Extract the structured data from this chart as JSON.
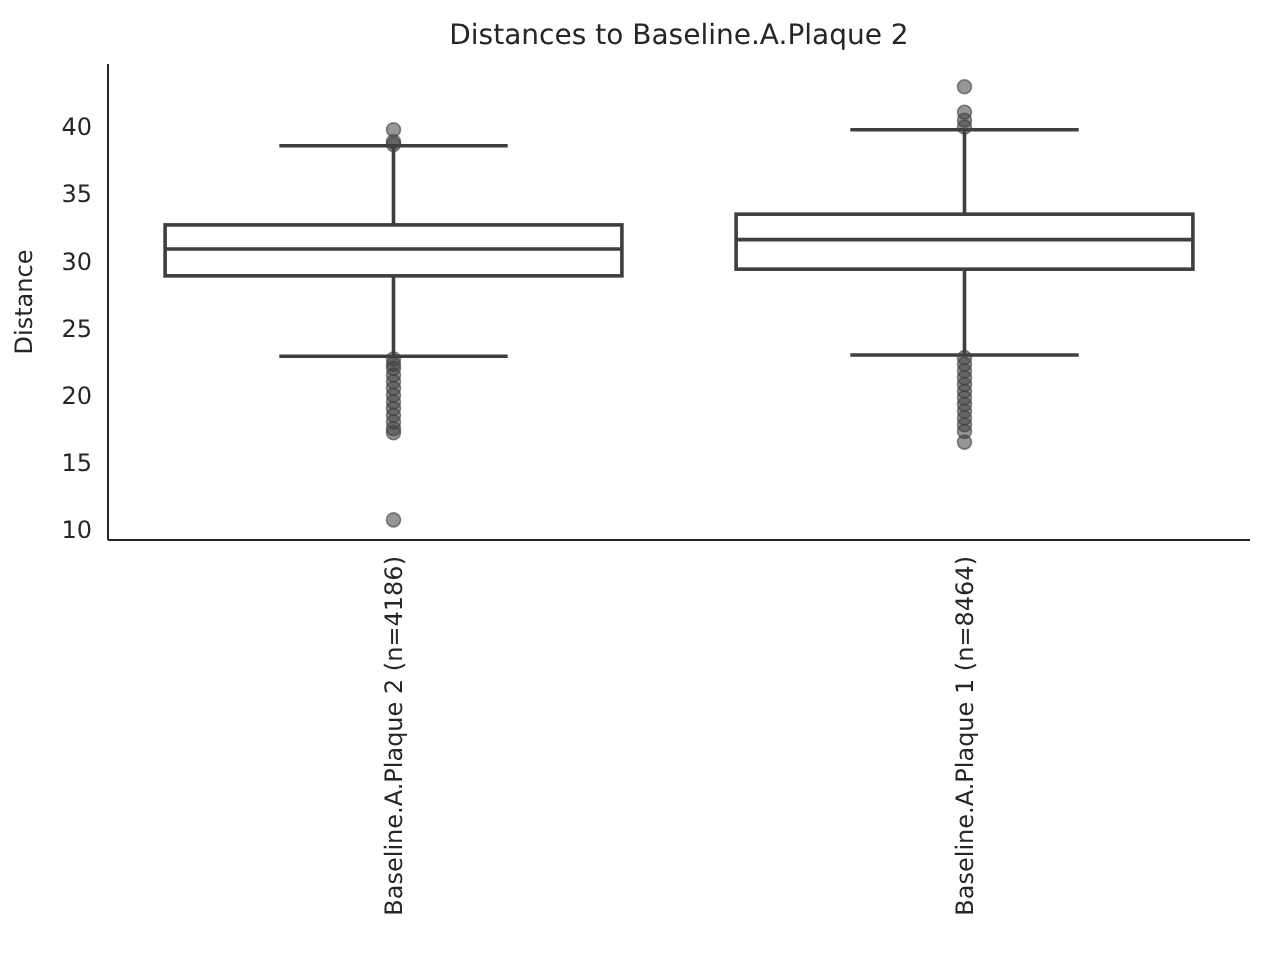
{
  "chart_data": {
    "type": "box",
    "title": "Distances to Baseline.A.Plaque 2",
    "ylabel": "Distance",
    "categories": [
      "Baseline.A.Plaque 2 (n=4186)",
      "Baseline.A.Plaque 1 (n=8464)"
    ],
    "ylim": [
      9.2,
      44.7
    ],
    "yticks": [
      10,
      15,
      20,
      25,
      30,
      35,
      40
    ],
    "grid": false,
    "boxes": [
      {
        "low": 22.9,
        "q1": 28.9,
        "median": 30.9,
        "q3": 32.7,
        "high": 38.6,
        "outliers": [
          39.8,
          38.9,
          38.7,
          22.7,
          22.3,
          22,
          21.5,
          21,
          20.5,
          20,
          19.5,
          19,
          18.5,
          18,
          17.5,
          17.2,
          10.7
        ]
      },
      {
        "low": 23,
        "q1": 29.4,
        "median": 31.6,
        "q3": 33.5,
        "high": 39.8,
        "outliers": [
          43,
          41.1,
          40.5,
          40,
          22.8,
          22.3,
          21.8,
          21.3,
          20.8,
          20.3,
          19.8,
          19.3,
          18.8,
          18.3,
          17.8,
          17.3,
          16.5
        ]
      }
    ]
  }
}
